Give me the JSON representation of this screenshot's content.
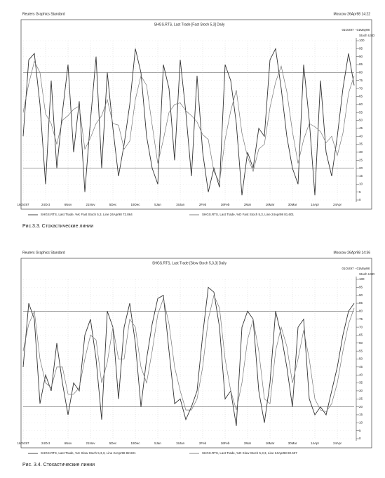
{
  "chart_data": [
    {
      "type": "line",
      "source": "Reuters Graphics Standard",
      "timestamp": "Moscow 26Apr98 14:22",
      "title": "SHGS.RTS, Last Trade [Fast Stoch 5,3] Daily",
      "date_range": "01Oct97 - 01May98",
      "axis_label": "Stoch USD",
      "caption": "Рис.3.3. Стохастические линии",
      "categories": [
        "16Oct97",
        null,
        null,
        null,
        "24Oct",
        null,
        null,
        null,
        "6Nov",
        null,
        null,
        null,
        "21Nov",
        null,
        null,
        null,
        "5Dec",
        null,
        null,
        null,
        "19Dec",
        null,
        null,
        null,
        "5Jan",
        null,
        null,
        null,
        "19Jan",
        null,
        null,
        null,
        "2Feb",
        null,
        null,
        null,
        "16Feb",
        null,
        null,
        null,
        "2Mar",
        null,
        null,
        null,
        "16Mar",
        null,
        null,
        null,
        "30Mar",
        null,
        null,
        null,
        "14Apr",
        null,
        null,
        null,
        "24Apr",
        null,
        null,
        null
      ],
      "series": [
        {
          "name": "SHGS.RTS, Last Trade, %K Fast Stoch 5,3, Line 24Apr98 72.864",
          "color": "#333333",
          "values": [
            40,
            88,
            92,
            60,
            10,
            75,
            20,
            55,
            85,
            30,
            62,
            5,
            50,
            90,
            20,
            80,
            45,
            15,
            35,
            60,
            95,
            80,
            40,
            20,
            10,
            85,
            70,
            25,
            88,
            55,
            15,
            78,
            30,
            5,
            20,
            8,
            85,
            75,
            48,
            3,
            30,
            20,
            45,
            40,
            88,
            95,
            70,
            40,
            20,
            10,
            85,
            50,
            3,
            75,
            30,
            15,
            40,
            70,
            92,
            72
          ]
        },
        {
          "name": "SHGS.RTS, Last Trade, %D Fast Stoch 5,3, Line 24Apr98 81.601",
          "color": "#777777",
          "values": [
            55,
            73,
            87,
            80,
            54,
            48,
            35,
            50,
            53,
            57,
            59,
            32,
            39,
            48,
            53,
            63,
            48,
            47,
            32,
            37,
            63,
            78,
            72,
            47,
            23,
            38,
            55,
            60,
            61,
            56,
            53,
            49,
            41,
            38,
            18,
            11,
            38,
            56,
            69,
            42,
            27,
            18,
            32,
            35,
            58,
            74,
            84,
            68,
            43,
            23,
            38,
            48,
            46,
            43,
            36,
            40,
            28,
            42,
            67,
            78
          ]
        }
      ],
      "ylim": [
        0,
        100
      ],
      "yticks": [
        0,
        5,
        10,
        15,
        20,
        25,
        30,
        35,
        40,
        45,
        50,
        55,
        60,
        65,
        70,
        75,
        80,
        85,
        90,
        95,
        100
      ],
      "reference_lines": [
        80,
        20
      ],
      "grid": true
    },
    {
      "type": "line",
      "source": "Reuters Graphics Standard",
      "timestamp": "Moscow 26Apr98 14:36",
      "title": "SHGS.RTS, Last Trade [Slow Stoch 5,3,3] Daily",
      "date_range": "01Oct97 - 01May98",
      "axis_label": "Stoch USD",
      "caption": "Рис. 3.4. Стохастические линии",
      "categories": [
        "16Oct97",
        null,
        null,
        null,
        "24Oct",
        null,
        null,
        null,
        "6Nov",
        null,
        null,
        null,
        "21Nov",
        null,
        null,
        null,
        "5Dec",
        null,
        null,
        null,
        "19Dec",
        null,
        null,
        null,
        "5Jan",
        null,
        null,
        null,
        "19Jan",
        null,
        null,
        null,
        "2Feb",
        null,
        null,
        null,
        "16Feb",
        null,
        null,
        null,
        "2Mar",
        null,
        null,
        null,
        "16Mar",
        null,
        null,
        null,
        "30Mar",
        null,
        null,
        null,
        "14Apr",
        null,
        null,
        null,
        "24Apr",
        null,
        null,
        null
      ],
      "series": [
        {
          "name": "SHGS.RTS, Last Trade, %K Slow Stoch 5,3,3, Line 24Apr98 82.601",
          "color": "#333333",
          "values": [
            45,
            85,
            75,
            22,
            40,
            30,
            60,
            35,
            15,
            35,
            30,
            65,
            75,
            50,
            12,
            80,
            70,
            25,
            70,
            85,
            60,
            20,
            50,
            72,
            88,
            90,
            55,
            22,
            25,
            12,
            20,
            30,
            65,
            95,
            92,
            70,
            25,
            30,
            8,
            70,
            80,
            75,
            30,
            10,
            35,
            80,
            65,
            45,
            20,
            70,
            75,
            25,
            15,
            20,
            15,
            30,
            45,
            65,
            80,
            85
          ]
        },
        {
          "name": "SHGS.RTS, Last Trade, %D Slow Stoch 5,3,3, Line 24Apr98 80.637",
          "color": "#777777",
          "values": [
            55,
            72,
            80,
            50,
            35,
            32,
            45,
            45,
            28,
            28,
            32,
            50,
            65,
            62,
            35,
            48,
            70,
            50,
            50,
            75,
            70,
            45,
            35,
            55,
            78,
            88,
            72,
            45,
            30,
            18,
            18,
            25,
            45,
            75,
            90,
            82,
            50,
            30,
            18,
            35,
            62,
            75,
            55,
            25,
            22,
            55,
            70,
            58,
            35,
            50,
            68,
            50,
            25,
            18,
            17,
            22,
            35,
            55,
            72,
            82
          ]
        }
      ],
      "ylim": [
        0,
        100
      ],
      "yticks": [
        0,
        5,
        10,
        15,
        20,
        25,
        30,
        35,
        40,
        45,
        50,
        55,
        60,
        65,
        70,
        75,
        80,
        85,
        90,
        95,
        100
      ],
      "reference_lines": [
        80,
        20
      ],
      "grid": true
    }
  ]
}
